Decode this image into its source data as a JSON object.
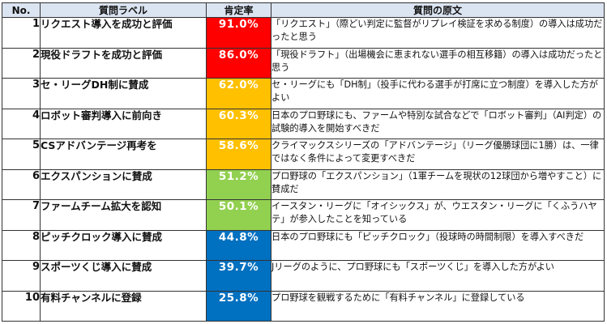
{
  "headers": {
    "no": "No.",
    "label": "質問ラベル",
    "rate": "肯定率",
    "original": "質問の原文"
  },
  "rows": [
    {
      "no": "1",
      "label": "リクエスト導入を成功と評価",
      "rate": "91.0%",
      "rate_value": 91.0,
      "color": "#fe0000",
      "original": "「リクエスト」（際どい判定に監督がリプレイ検証を求める制度）の導入は成功だったと思う"
    },
    {
      "no": "2",
      "label": "現役ドラフトを成功と評価",
      "rate": "86.0%",
      "rate_value": 86.0,
      "color": "#fe0000",
      "original": "「現役ドラフト」（出場機会に恵まれない選手の相互移籍）の導入は成功だったと思う"
    },
    {
      "no": "3",
      "label": "セ・リーグDH制に賛成",
      "rate": "62.0%",
      "rate_value": 62.0,
      "color": "#ffc000",
      "original": "セ・リーグにも「DH制」（投手に代わる選手が打席に立つ制度）を導入した方がよい"
    },
    {
      "no": "4",
      "label": "ロボット審判導入に前向き",
      "rate": "60.3%",
      "rate_value": 60.3,
      "color": "#ffc000",
      "original": "日本のプロ野球にも、ファームや特別な試合などで「ロボット審判」（AI判定）の試験的導入を開始すべきだ"
    },
    {
      "no": "5",
      "label": "CSアドバンテージ再考を",
      "rate": "58.6%",
      "rate_value": 58.6,
      "color": "#ffc000",
      "original": "クライマックスシリーズの「アドバンテージ」（リーグ優勝球団に1勝）は、一律ではなく条件によって変更すべきだ"
    },
    {
      "no": "6",
      "label": "エクスパンションに賛成",
      "rate": "51.2%",
      "rate_value": 51.2,
      "color": "#92d050",
      "original": "プロ野球の「エクスパンション」（1軍チームを現状の12球団から増やすこと）に賛成だ"
    },
    {
      "no": "7",
      "label": "ファームチーム拡大を認知",
      "rate": "50.1%",
      "rate_value": 50.1,
      "color": "#92d050",
      "original": "イースタン・リーグに「オイシックス」が、ウエスタン・リーグに「くふうハヤテ」が参入したことを知っている"
    },
    {
      "no": "8",
      "label": "ピッチクロック導入に賛成",
      "rate": "44.8%",
      "rate_value": 44.8,
      "color": "#0070c0",
      "original": "日本のプロ野球にも「ピッチクロック」（投球時の時間制限）を導入すべきだ"
    },
    {
      "no": "9",
      "label": "スポーツくじ導入に賛成",
      "rate": "39.7%",
      "rate_value": 39.7,
      "color": "#0070c0",
      "original": "Jリーグのように、プロ野球にも「スポーツくじ」を導入した方がよい"
    },
    {
      "no": "10",
      "label": "有料チャンネルに登録",
      "rate": "25.8%",
      "rate_value": 25.8,
      "color": "#0070c0",
      "original": "プロ野球を観戦するために「有料チャンネル」に登録している"
    }
  ]
}
